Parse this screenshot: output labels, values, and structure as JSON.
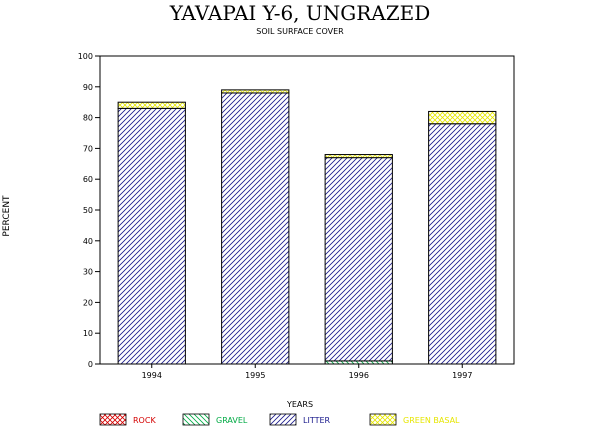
{
  "chart_data": {
    "type": "bar",
    "stacked": true,
    "title": "YAVAPAI Y-6, UNGRAZED",
    "subtitle": "SOIL SURFACE COVER",
    "xlabel": "YEARS",
    "ylabel": "PERCENT",
    "categories": [
      "1994",
      "1995",
      "1996",
      "1997"
    ],
    "ylim": [
      0,
      100
    ],
    "yticks": [
      0,
      10,
      20,
      30,
      40,
      50,
      60,
      70,
      80,
      90,
      100
    ],
    "grid": false,
    "legend_position": "bottom",
    "series": [
      {
        "name": "ROCK",
        "color": "#d40000",
        "pattern": "crosshatch",
        "values": [
          0,
          0,
          0,
          0
        ]
      },
      {
        "name": "GRAVEL",
        "color": "#00aa44",
        "pattern": "back-diagonal",
        "values": [
          0,
          0,
          1,
          0
        ]
      },
      {
        "name": "LITTER",
        "color": "#1a1a8c",
        "pattern": "diagonal",
        "values": [
          83,
          88,
          66,
          78
        ]
      },
      {
        "name": "GREEN BASAL",
        "color": "#e6e600",
        "pattern": "crosshatch",
        "values": [
          2,
          1,
          1,
          4
        ]
      }
    ]
  }
}
